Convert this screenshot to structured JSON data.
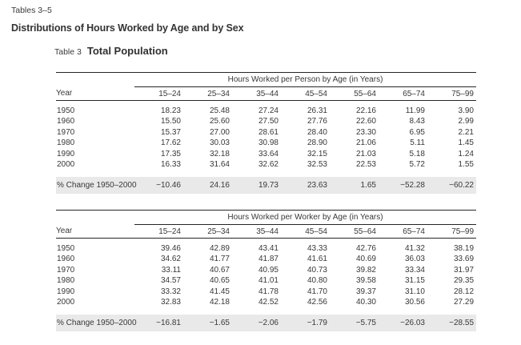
{
  "page": {
    "eyebrow": "Tables 3–5",
    "title": "Distributions of Hours Worked by Age and by Sex",
    "table_number": "Table 3",
    "table_title": "Total Population"
  },
  "columns": {
    "year": "Year",
    "ages": [
      "15–24",
      "25–34",
      "35–44",
      "45–54",
      "55–64",
      "65–74",
      "75–99"
    ]
  },
  "tables": [
    {
      "group_header": "Hours Worked per Person by Age (in Years)",
      "rows": [
        {
          "year": "1950",
          "values": [
            "18.23",
            "25.48",
            "27.24",
            "26.31",
            "22.16",
            "11.99",
            "3.90"
          ]
        },
        {
          "year": "1960",
          "values": [
            "15.50",
            "25.60",
            "27.50",
            "27.76",
            "22.60",
            "8.43",
            "2.99"
          ]
        },
        {
          "year": "1970",
          "values": [
            "15.37",
            "27.00",
            "28.61",
            "28.40",
            "23.30",
            "6.95",
            "2.21"
          ]
        },
        {
          "year": "1980",
          "values": [
            "17.62",
            "30.03",
            "30.98",
            "28.90",
            "21.06",
            "5.11",
            "1.45"
          ]
        },
        {
          "year": "1990",
          "values": [
            "17.35",
            "32.18",
            "33.64",
            "32.15",
            "21.03",
            "5.18",
            "1.24"
          ]
        },
        {
          "year": "2000",
          "values": [
            "16.33",
            "31.64",
            "32.62",
            "32.53",
            "22.53",
            "5.72",
            "1.55"
          ]
        }
      ],
      "change_row": {
        "label": "% Change 1950–2000",
        "values": [
          "−10.46",
          "24.16",
          "19.73",
          "23.63",
          "1.65",
          "−52.28",
          "−60.22"
        ]
      }
    },
    {
      "group_header": "Hours Worked per Worker by Age (in Years)",
      "rows": [
        {
          "year": "1950",
          "values": [
            "39.46",
            "42.89",
            "43.41",
            "43.33",
            "42.76",
            "41.32",
            "38.19"
          ]
        },
        {
          "year": "1960",
          "values": [
            "34.62",
            "41.77",
            "41.87",
            "41.61",
            "40.69",
            "36.03",
            "33.69"
          ]
        },
        {
          "year": "1970",
          "values": [
            "33.11",
            "40.67",
            "40.95",
            "40.73",
            "39.82",
            "33.34",
            "31.97"
          ]
        },
        {
          "year": "1980",
          "values": [
            "34.57",
            "40.65",
            "41.01",
            "40.80",
            "39.58",
            "31.15",
            "29.35"
          ]
        },
        {
          "year": "1990",
          "values": [
            "33.32",
            "41.45",
            "41.78",
            "41.70",
            "39.37",
            "31.10",
            "28.12"
          ]
        },
        {
          "year": "2000",
          "values": [
            "32.83",
            "42.18",
            "42.52",
            "42.56",
            "40.30",
            "30.56",
            "27.29"
          ]
        }
      ],
      "change_row": {
        "label": "% Change 1950–2000",
        "values": [
          "−16.81",
          "−1.65",
          "−2.06",
          "−1.79",
          "−5.75",
          "−26.03",
          "−28.55"
        ]
      }
    }
  ],
  "colors": {
    "text": "#383838",
    "rule": "#262626",
    "band": "#e9e9e9",
    "background": "#ffffff"
  }
}
